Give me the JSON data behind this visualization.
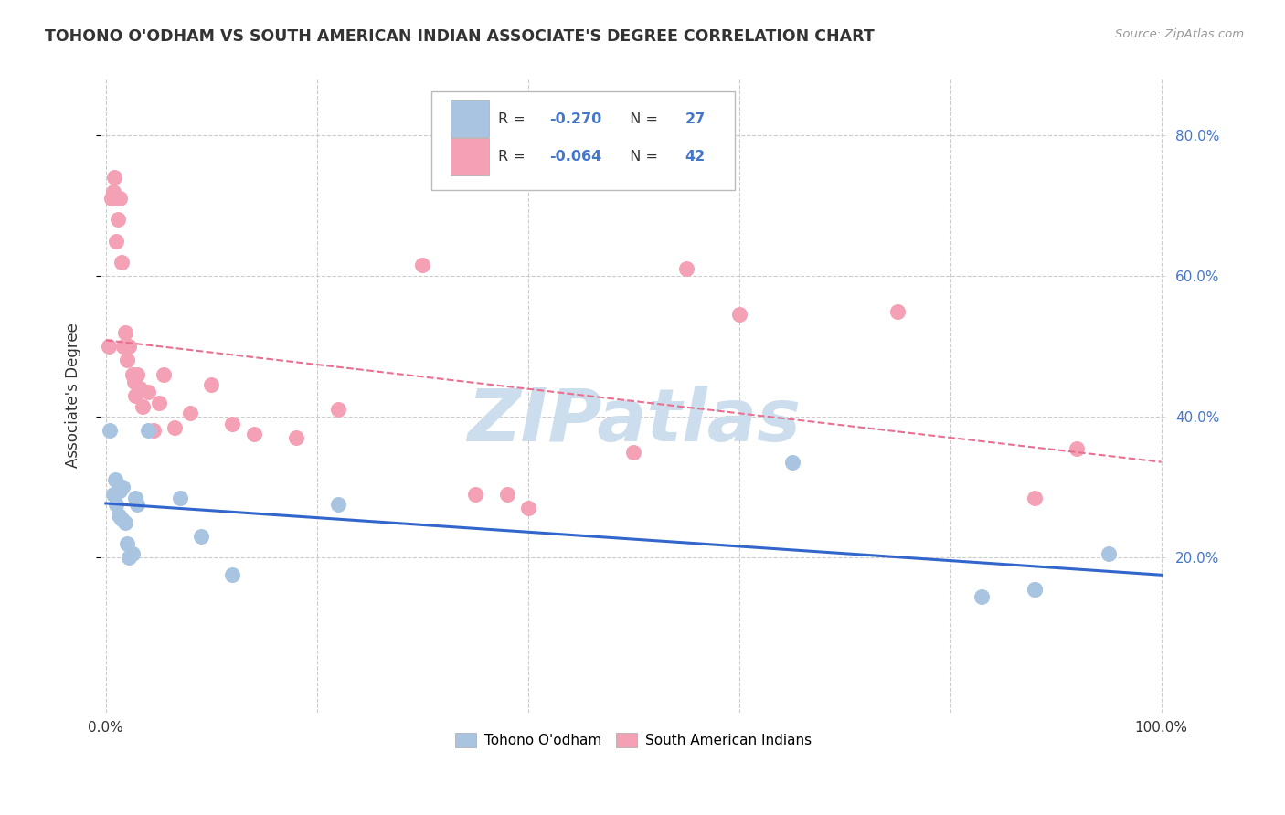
{
  "title": "TOHONO O'ODHAM VS SOUTH AMERICAN INDIAN ASSOCIATE'S DEGREE CORRELATION CHART",
  "source": "Source: ZipAtlas.com",
  "ylabel": "Associate's Degree",
  "legend_labels": [
    "Tohono O'odham",
    "South American Indians"
  ],
  "blue_R": "-0.270",
  "blue_N": "27",
  "pink_R": "-0.064",
  "pink_N": "42",
  "blue_dot_color": "#a8c4e0",
  "pink_dot_color": "#f4a0b5",
  "blue_line_color": "#3366cc",
  "pink_line_color": "#e87090",
  "text_color": "#333333",
  "value_color": "#4477cc",
  "grid_color": "#cccccc",
  "watermark_color": "#ccdded",
  "blue_scatter_x": [
    0.004,
    0.007,
    0.009,
    0.01,
    0.012,
    0.013,
    0.015,
    0.016,
    0.018,
    0.02,
    0.022,
    0.025,
    0.028,
    0.03,
    0.04,
    0.07,
    0.09,
    0.12,
    0.22,
    0.65,
    0.83,
    0.88,
    0.88,
    0.95
  ],
  "blue_scatter_y": [
    0.38,
    0.29,
    0.31,
    0.275,
    0.26,
    0.295,
    0.255,
    0.3,
    0.25,
    0.22,
    0.2,
    0.205,
    0.285,
    0.275,
    0.38,
    0.285,
    0.23,
    0.175,
    0.275,
    0.335,
    0.145,
    0.155,
    0.155,
    0.205
  ],
  "pink_scatter_x": [
    0.003,
    0.005,
    0.007,
    0.008,
    0.01,
    0.011,
    0.013,
    0.015,
    0.017,
    0.018,
    0.02,
    0.022,
    0.025,
    0.027,
    0.028,
    0.03,
    0.032,
    0.035,
    0.04,
    0.045,
    0.05,
    0.055,
    0.065,
    0.08,
    0.1,
    0.12,
    0.14,
    0.18,
    0.22,
    0.3,
    0.35,
    0.38,
    0.4,
    0.5,
    0.55,
    0.6,
    0.75,
    0.88,
    0.92
  ],
  "pink_scatter_y": [
    0.5,
    0.71,
    0.72,
    0.74,
    0.65,
    0.68,
    0.71,
    0.62,
    0.5,
    0.52,
    0.48,
    0.5,
    0.46,
    0.45,
    0.43,
    0.46,
    0.44,
    0.415,
    0.435,
    0.38,
    0.42,
    0.46,
    0.385,
    0.405,
    0.445,
    0.39,
    0.375,
    0.37,
    0.41,
    0.615,
    0.29,
    0.29,
    0.27,
    0.35,
    0.61,
    0.545,
    0.55,
    0.285,
    0.355
  ],
  "xlim": [
    -0.005,
    1.005
  ],
  "ylim": [
    -0.02,
    0.88
  ],
  "yticks": [
    0.2,
    0.4,
    0.6,
    0.8
  ],
  "ytick_labels": [
    "20.0%",
    "40.0%",
    "60.0%",
    "80.0%"
  ],
  "xticks": [
    0.0,
    0.2,
    0.4,
    0.6,
    0.8,
    1.0
  ],
  "xtick_labels": [
    "0.0%",
    "",
    "",
    "",
    "",
    "100.0%"
  ]
}
